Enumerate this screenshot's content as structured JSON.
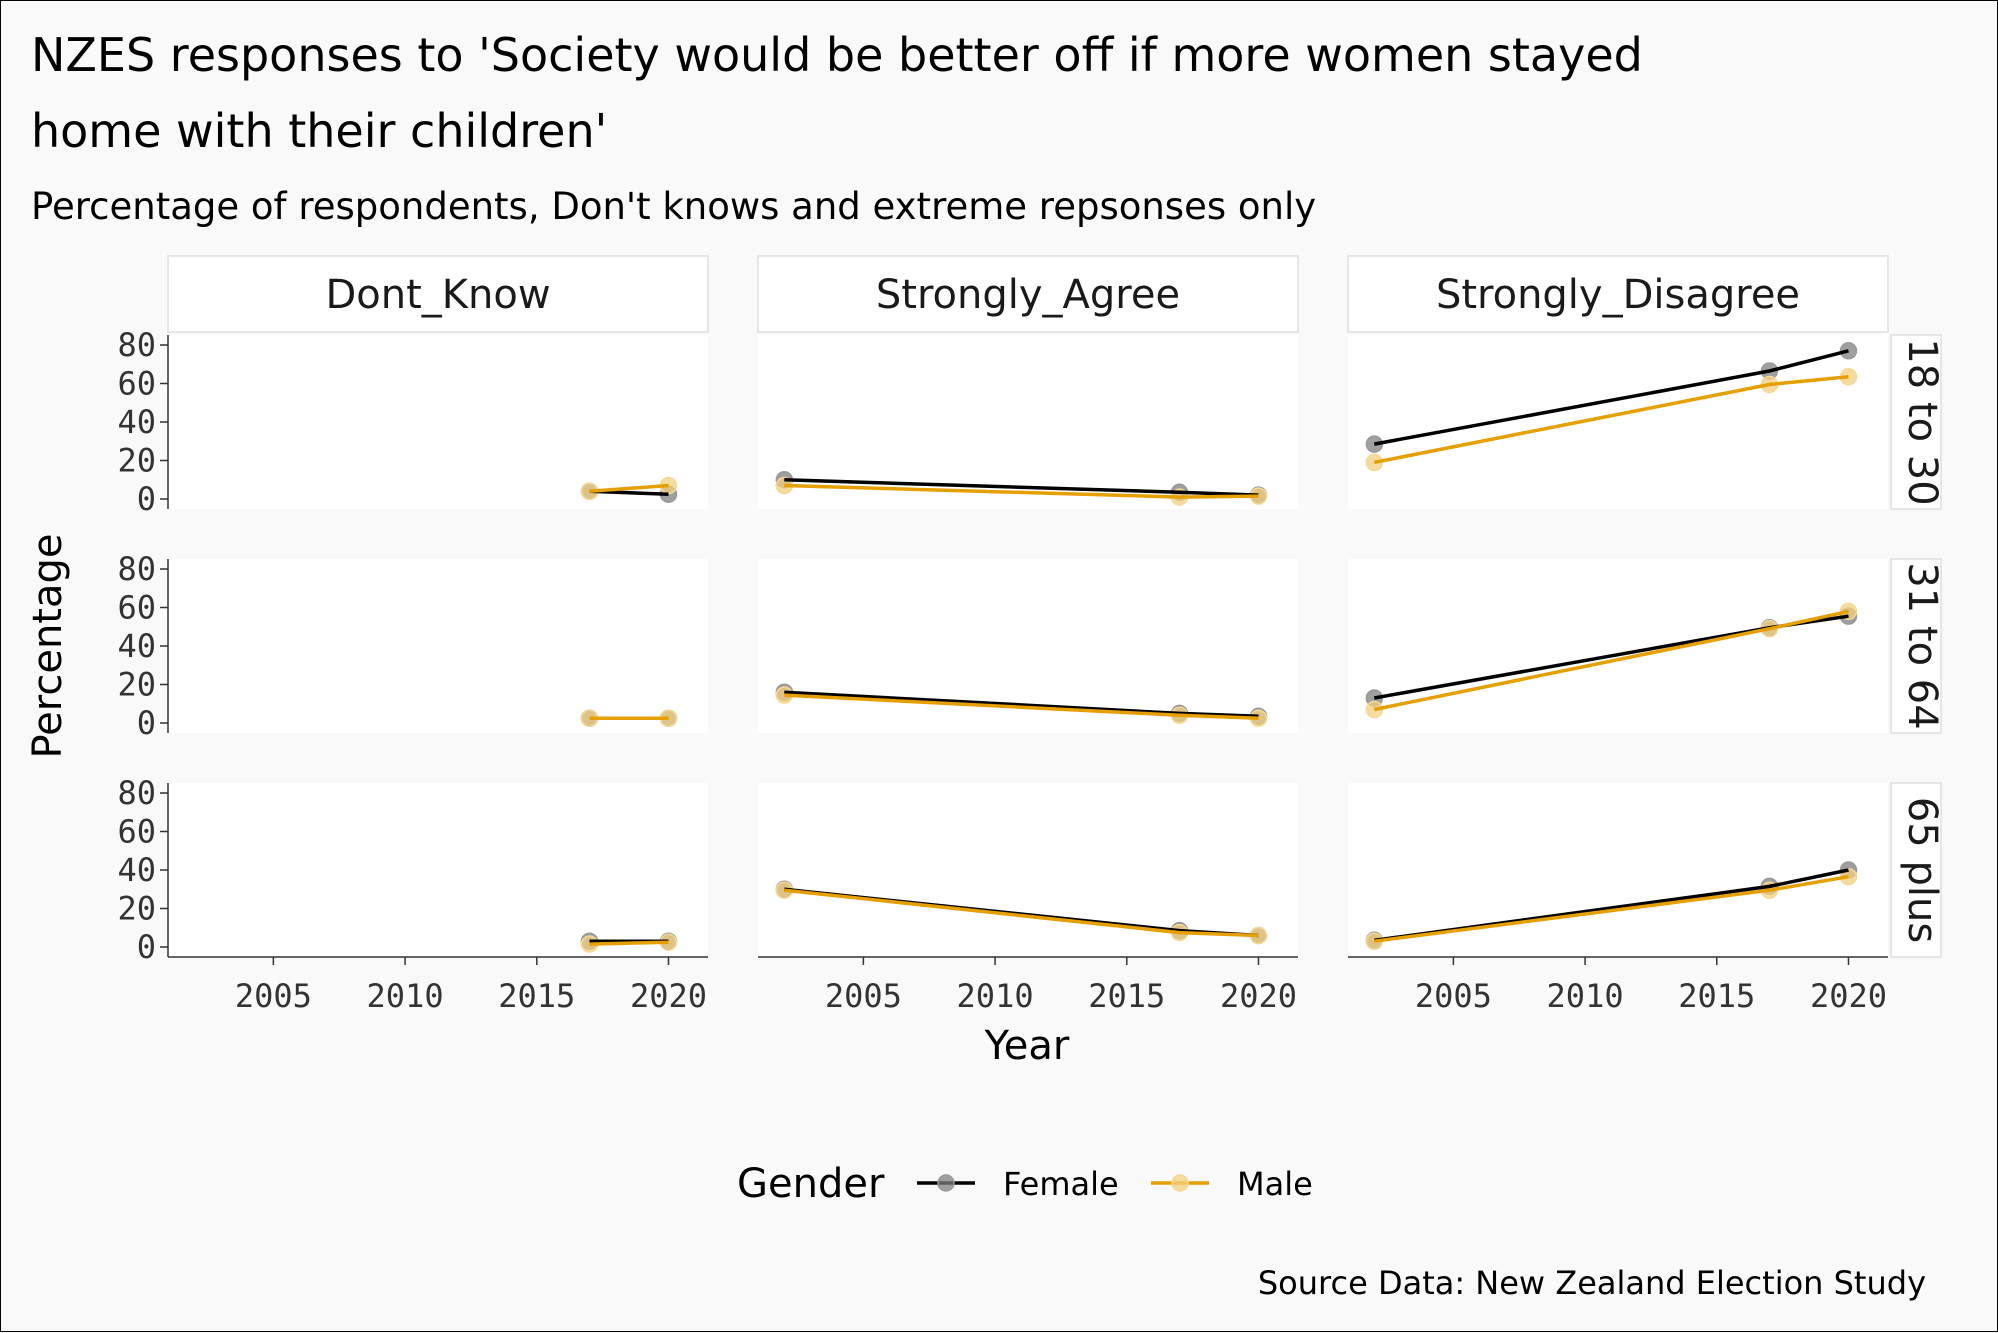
{
  "chart_data": {
    "type": "line",
    "title_line1": "NZES responses to 'Society would be better off if more women stayed",
    "title_line2": "home with their children'",
    "subtitle": "Percentage of respondents, Don't knows and extreme repsonses only",
    "xlabel": "Year",
    "ylabel": "Percentage",
    "caption": "Source Data: New Zealand Election Study",
    "xlim": [
      2001,
      2021.5
    ],
    "ylim": [
      0,
      80
    ],
    "x_ticks": [
      "2005",
      "2010",
      "2015",
      "2020"
    ],
    "y_ticks": [
      "0",
      "20",
      "40",
      "60",
      "80"
    ],
    "columns": [
      "Dont_Know",
      "Strongly_Agree",
      "Strongly_Disagree"
    ],
    "rows": [
      "18 to 30",
      "31 to 64",
      "65 plus"
    ],
    "legend": {
      "title": "Gender",
      "position": "bottom",
      "entries": [
        "Female",
        "Male"
      ]
    },
    "colors": {
      "Female": "#000000",
      "Male": "#E69F00"
    },
    "panels": [
      {
        "row": "18 to 30",
        "column": "Dont_Know",
        "series": [
          {
            "name": "Female",
            "x": [
              2017,
              2020
            ],
            "y": [
              4,
              2.5
            ]
          },
          {
            "name": "Male",
            "x": [
              2017,
              2020
            ],
            "y": [
              4,
              7
            ]
          }
        ]
      },
      {
        "row": "18 to 30",
        "column": "Strongly_Agree",
        "series": [
          {
            "name": "Female",
            "x": [
              2002,
              2017,
              2020
            ],
            "y": [
              10,
              3.5,
              2
            ]
          },
          {
            "name": "Male",
            "x": [
              2002,
              2017,
              2020
            ],
            "y": [
              7,
              1,
              1.5
            ]
          }
        ]
      },
      {
        "row": "18 to 30",
        "column": "Strongly_Disagree",
        "series": [
          {
            "name": "Female",
            "x": [
              2002,
              2017,
              2020
            ],
            "y": [
              28.5,
              66.5,
              77
            ]
          },
          {
            "name": "Male",
            "x": [
              2002,
              2017,
              2020
            ],
            "y": [
              19,
              59.5,
              63.5
            ]
          }
        ]
      },
      {
        "row": "31 to 64",
        "column": "Dont_Know",
        "series": [
          {
            "name": "Female",
            "x": [
              2017,
              2020
            ],
            "y": [
              2.5,
              2.5
            ]
          },
          {
            "name": "Male",
            "x": [
              2017,
              2020
            ],
            "y": [
              2.5,
              2.5
            ]
          }
        ]
      },
      {
        "row": "31 to 64",
        "column": "Strongly_Agree",
        "series": [
          {
            "name": "Female",
            "x": [
              2002,
              2017,
              2020
            ],
            "y": [
              16,
              5,
              3.5
            ]
          },
          {
            "name": "Male",
            "x": [
              2002,
              2017,
              2020
            ],
            "y": [
              14.5,
              4,
              2.5
            ]
          }
        ]
      },
      {
        "row": "31 to 64",
        "column": "Strongly_Disagree",
        "series": [
          {
            "name": "Female",
            "x": [
              2002,
              2017,
              2020
            ],
            "y": [
              13,
              49.5,
              55.5
            ]
          },
          {
            "name": "Male",
            "x": [
              2002,
              2017,
              2020
            ],
            "y": [
              7,
              49,
              58
            ]
          }
        ]
      },
      {
        "row": "65 plus",
        "column": "Dont_Know",
        "series": [
          {
            "name": "Female",
            "x": [
              2017,
              2020
            ],
            "y": [
              3,
              3
            ]
          },
          {
            "name": "Male",
            "x": [
              2017,
              2020
            ],
            "y": [
              1.5,
              2.5
            ]
          }
        ]
      },
      {
        "row": "65 plus",
        "column": "Strongly_Agree",
        "series": [
          {
            "name": "Female",
            "x": [
              2002,
              2017,
              2020
            ],
            "y": [
              30,
              8.5,
              6
            ]
          },
          {
            "name": "Male",
            "x": [
              2002,
              2017,
              2020
            ],
            "y": [
              29.5,
              7.5,
              6
            ]
          }
        ]
      },
      {
        "row": "65 plus",
        "column": "Strongly_Disagree",
        "series": [
          {
            "name": "Female",
            "x": [
              2002,
              2017,
              2020
            ],
            "y": [
              3.5,
              31.5,
              40
            ]
          },
          {
            "name": "Male",
            "x": [
              2002,
              2017,
              2020
            ],
            "y": [
              3,
              29.5,
              36.5
            ]
          }
        ]
      }
    ]
  }
}
